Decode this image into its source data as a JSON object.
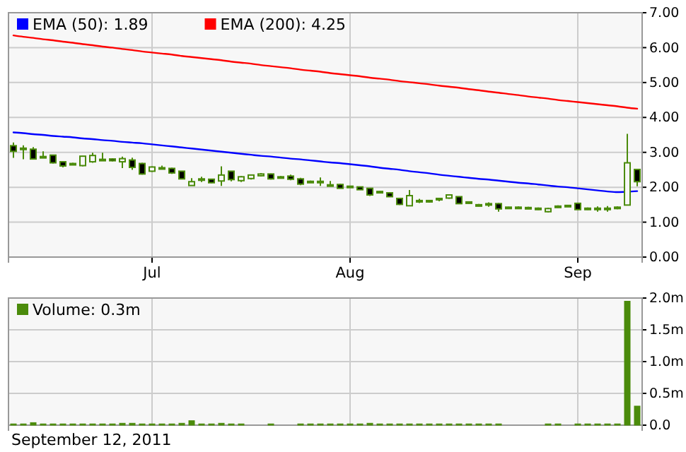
{
  "chart_data": [
    {
      "type": "candlestick",
      "color": "#4b8b0b",
      "legend": "top left",
      "grid": true,
      "categories": [
        null,
        null,
        null,
        null,
        null,
        null,
        null,
        null,
        null,
        null,
        null,
        null,
        null,
        null,
        "Jul",
        null,
        null,
        null,
        null,
        null,
        null,
        null,
        null,
        null,
        null,
        null,
        null,
        null,
        null,
        null,
        null,
        null,
        null,
        null,
        "Aug",
        null,
        null,
        null,
        null,
        null,
        null,
        null,
        null,
        null,
        null,
        null,
        null,
        null,
        null,
        null,
        null,
        null,
        null,
        null,
        null,
        null,
        null,
        "Sep",
        null,
        null,
        null,
        null,
        null,
        null
      ],
      "ylim": [
        0,
        7
      ],
      "yticks": [
        {
          "value": 0,
          "label": "0.00"
        },
        {
          "value": 1,
          "label": "1.00"
        },
        {
          "value": 2,
          "label": "2.00"
        },
        {
          "value": 3,
          "label": "3.00"
        },
        {
          "value": 4,
          "label": "4.00"
        },
        {
          "value": 5,
          "label": "5.00"
        },
        {
          "value": 6,
          "label": "6.00"
        },
        {
          "value": 7,
          "label": "7.00"
        }
      ],
      "ohlc": [
        [
          3.19,
          3.28,
          2.84,
          3.03
        ],
        [
          3.08,
          3.2,
          2.8,
          3.12
        ],
        [
          3.09,
          3.15,
          2.81,
          2.81
        ],
        [
          2.88,
          3.03,
          2.86,
          2.88
        ],
        [
          2.92,
          2.93,
          2.68,
          2.7
        ],
        [
          2.73,
          2.74,
          2.57,
          2.61
        ],
        [
          2.66,
          2.7,
          2.64,
          2.68
        ],
        [
          2.62,
          2.9,
          2.6,
          2.89
        ],
        [
          2.73,
          2.99,
          2.7,
          2.91
        ],
        [
          2.8,
          2.99,
          2.77,
          2.8
        ],
        [
          2.81,
          2.83,
          2.74,
          2.76
        ],
        [
          2.73,
          2.88,
          2.55,
          2.82
        ],
        [
          2.78,
          2.85,
          2.5,
          2.57
        ],
        [
          2.68,
          2.7,
          2.36,
          2.38
        ],
        [
          2.46,
          2.6,
          2.44,
          2.58
        ],
        [
          2.55,
          2.62,
          2.53,
          2.56
        ],
        [
          2.54,
          2.56,
          2.38,
          2.41
        ],
        [
          2.46,
          2.47,
          2.23,
          2.24
        ],
        [
          2.05,
          2.26,
          2.05,
          2.16
        ],
        [
          2.22,
          2.3,
          2.15,
          2.24
        ],
        [
          2.23,
          2.23,
          2.12,
          2.13
        ],
        [
          2.18,
          2.6,
          2.04,
          2.35
        ],
        [
          2.46,
          2.47,
          2.17,
          2.22
        ],
        [
          2.19,
          2.32,
          2.15,
          2.3
        ],
        [
          2.25,
          2.36,
          2.22,
          2.35
        ],
        [
          2.33,
          2.41,
          2.31,
          2.38
        ],
        [
          2.38,
          2.39,
          2.22,
          2.24
        ],
        [
          2.29,
          2.32,
          2.27,
          2.3
        ],
        [
          2.32,
          2.36,
          2.2,
          2.23
        ],
        [
          2.24,
          2.27,
          2.06,
          2.09
        ],
        [
          2.17,
          2.19,
          2.14,
          2.16
        ],
        [
          2.15,
          2.28,
          2.04,
          2.17
        ],
        [
          2.07,
          2.18,
          2.05,
          2.07
        ],
        [
          2.08,
          2.1,
          1.96,
          1.97
        ],
        [
          2.03,
          2.04,
          2.01,
          2.02
        ],
        [
          2.01,
          2.02,
          1.92,
          1.93
        ],
        [
          1.97,
          1.98,
          1.75,
          1.78
        ],
        [
          1.88,
          1.89,
          1.84,
          1.86
        ],
        [
          1.84,
          1.86,
          1.72,
          1.73
        ],
        [
          1.68,
          1.7,
          1.49,
          1.51
        ],
        [
          1.47,
          1.92,
          1.47,
          1.76
        ],
        [
          1.62,
          1.67,
          1.55,
          1.62
        ],
        [
          1.58,
          1.64,
          1.56,
          1.62
        ],
        [
          1.64,
          1.69,
          1.6,
          1.68
        ],
        [
          1.69,
          1.8,
          1.67,
          1.78
        ],
        [
          1.73,
          1.74,
          1.52,
          1.53
        ],
        [
          1.58,
          1.6,
          1.53,
          1.55
        ],
        [
          1.5,
          1.52,
          1.45,
          1.47
        ],
        [
          1.53,
          1.57,
          1.44,
          1.51
        ],
        [
          1.53,
          1.55,
          1.3,
          1.38
        ],
        [
          1.43,
          1.44,
          1.42,
          1.43
        ],
        [
          1.43,
          1.45,
          1.38,
          1.42
        ],
        [
          1.42,
          1.44,
          1.39,
          1.41
        ],
        [
          1.4,
          1.42,
          1.35,
          1.4
        ],
        [
          1.3,
          1.41,
          1.28,
          1.39
        ],
        [
          1.43,
          1.48,
          1.41,
          1.46
        ],
        [
          1.47,
          1.49,
          1.46,
          1.48
        ],
        [
          1.54,
          1.56,
          1.35,
          1.36
        ],
        [
          1.37,
          1.42,
          1.35,
          1.4
        ],
        [
          1.4,
          1.45,
          1.3,
          1.4
        ],
        [
          1.38,
          1.46,
          1.3,
          1.4
        ],
        [
          1.4,
          1.45,
          1.37,
          1.43
        ],
        [
          1.49,
          3.53,
          1.49,
          2.7
        ],
        [
          2.51,
          2.52,
          2.03,
          2.16
        ]
      ],
      "series": [
        {
          "name": "EMA (50): 1.89",
          "type": "line",
          "color": "#0000ff",
          "values": [
            3.57,
            3.55,
            3.52,
            3.5,
            3.47,
            3.45,
            3.43,
            3.4,
            3.38,
            3.35,
            3.33,
            3.3,
            3.28,
            3.26,
            3.23,
            3.2,
            3.17,
            3.14,
            3.11,
            3.08,
            3.05,
            3.02,
            2.99,
            2.96,
            2.93,
            2.9,
            2.88,
            2.85,
            2.82,
            2.8,
            2.77,
            2.74,
            2.71,
            2.69,
            2.66,
            2.63,
            2.6,
            2.56,
            2.53,
            2.5,
            2.46,
            2.43,
            2.4,
            2.36,
            2.33,
            2.3,
            2.27,
            2.24,
            2.22,
            2.19,
            2.16,
            2.13,
            2.11,
            2.08,
            2.05,
            2.02,
            2.0,
            1.97,
            1.94,
            1.91,
            1.88,
            1.86,
            1.87,
            1.89
          ]
        },
        {
          "name": "EMA (200): 4.25",
          "type": "line",
          "color": "#ff0000",
          "values": [
            6.35,
            6.31,
            6.28,
            6.24,
            6.21,
            6.17,
            6.14,
            6.1,
            6.07,
            6.03,
            6.0,
            5.96,
            5.93,
            5.89,
            5.86,
            5.83,
            5.8,
            5.76,
            5.73,
            5.7,
            5.67,
            5.64,
            5.6,
            5.57,
            5.54,
            5.5,
            5.47,
            5.44,
            5.41,
            5.37,
            5.34,
            5.31,
            5.27,
            5.24,
            5.21,
            5.18,
            5.14,
            5.11,
            5.08,
            5.04,
            5.01,
            4.98,
            4.95,
            4.91,
            4.88,
            4.85,
            4.81,
            4.78,
            4.74,
            4.71,
            4.67,
            4.64,
            4.6,
            4.57,
            4.54,
            4.5,
            4.47,
            4.44,
            4.41,
            4.38,
            4.35,
            4.32,
            4.28,
            4.25
          ]
        }
      ]
    },
    {
      "type": "bar",
      "legend": "top left",
      "grid": true,
      "tick_labels": "y",
      "categories": [
        null,
        null,
        null,
        null,
        null,
        null,
        null,
        null,
        null,
        null,
        null,
        null,
        null,
        null,
        null,
        null,
        null,
        null,
        null,
        null,
        null,
        null,
        null,
        null,
        null,
        null,
        null,
        null,
        null,
        null,
        null,
        null,
        null,
        null,
        null,
        null,
        null,
        null,
        null,
        null,
        null,
        null,
        null,
        null,
        null,
        null,
        null,
        null,
        null,
        null,
        null,
        null,
        null,
        null,
        null,
        null,
        null,
        null,
        null,
        null,
        null,
        null,
        null,
        null
      ],
      "ylim": [
        0,
        2
      ],
      "yticks": [
        {
          "value": 0,
          "label": "0.0"
        },
        {
          "value": 0.5,
          "label": "0.5m"
        },
        {
          "value": 1,
          "label": "1.0m"
        },
        {
          "value": 1.5,
          "label": "1.5m"
        },
        {
          "value": 2,
          "label": "2.0m"
        }
      ],
      "annotations": [
        "September 12, 2011"
      ],
      "series": [
        {
          "name": "Volume: 0.3m",
          "color": "#4b8b0b",
          "values": [
            0.02,
            0.02,
            0.04,
            0.02,
            0.02,
            0.02,
            0.02,
            0.02,
            0.02,
            0.02,
            0.02,
            0.03,
            0.03,
            0.02,
            0.02,
            0.02,
            0.02,
            0.03,
            0.07,
            0.02,
            0.02,
            0.03,
            0.02,
            0.02,
            0,
            0,
            0.02,
            0,
            0,
            0.02,
            0.02,
            0.02,
            0.02,
            0.02,
            0.02,
            0.02,
            0.03,
            0.02,
            0.02,
            0.02,
            0.02,
            0.02,
            0.02,
            0.02,
            0.02,
            0.02,
            0.02,
            0.02,
            0.02,
            0.02,
            0,
            0,
            0,
            0,
            0.02,
            0.02,
            0,
            0.02,
            0.02,
            0.02,
            0.02,
            0.02,
            1.95,
            0.3
          ]
        }
      ]
    }
  ]
}
